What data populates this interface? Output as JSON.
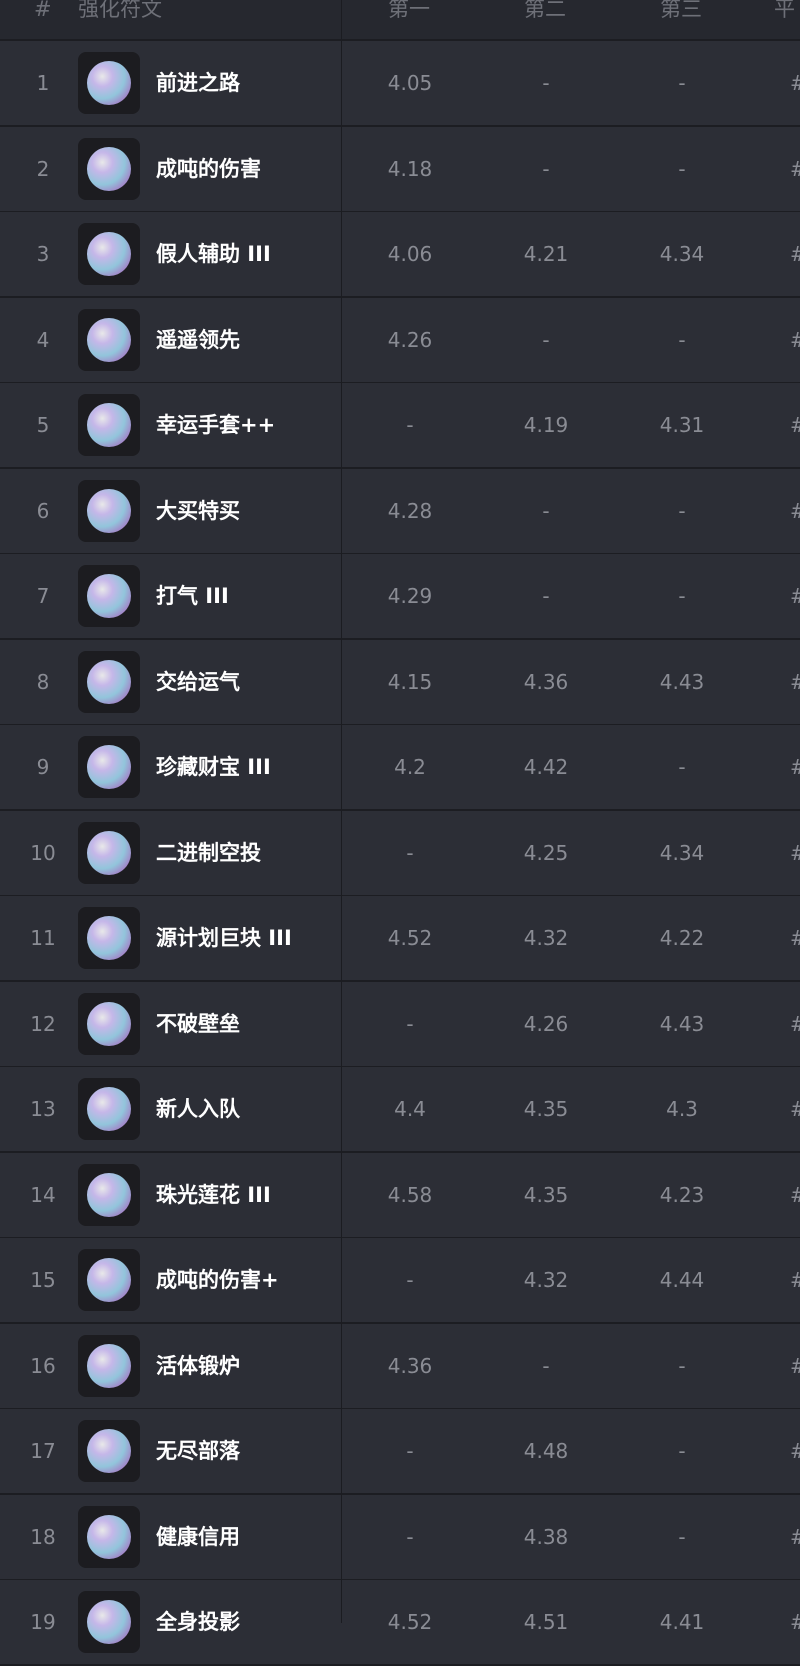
{
  "header": {
    "rank": "#",
    "rune": "强化符文",
    "first": "第一",
    "second": "第二",
    "third": "第三",
    "avg": "平"
  },
  "rows": [
    {
      "rank": "1",
      "name": "前进之路",
      "first": "4.05",
      "second": "-",
      "third": "-",
      "avg": "#"
    },
    {
      "rank": "2",
      "name": "成吨的伤害",
      "first": "4.18",
      "second": "-",
      "third": "-",
      "avg": "#"
    },
    {
      "rank": "3",
      "name": "假人辅助 III",
      "first": "4.06",
      "second": "4.21",
      "third": "4.34",
      "avg": "#"
    },
    {
      "rank": "4",
      "name": "遥遥领先",
      "first": "4.26",
      "second": "-",
      "third": "-",
      "avg": "#"
    },
    {
      "rank": "5",
      "name": "幸运手套++",
      "first": "-",
      "second": "4.19",
      "third": "4.31",
      "avg": "#"
    },
    {
      "rank": "6",
      "name": "大买特买",
      "first": "4.28",
      "second": "-",
      "third": "-",
      "avg": "#"
    },
    {
      "rank": "7",
      "name": "打气 III",
      "first": "4.29",
      "second": "-",
      "third": "-",
      "avg": "#"
    },
    {
      "rank": "8",
      "name": "交给运气",
      "first": "4.15",
      "second": "4.36",
      "third": "4.43",
      "avg": "#"
    },
    {
      "rank": "9",
      "name": "珍藏财宝 III",
      "first": "4.2",
      "second": "4.42",
      "third": "-",
      "avg": "#"
    },
    {
      "rank": "10",
      "name": "二进制空投",
      "first": "-",
      "second": "4.25",
      "third": "4.34",
      "avg": "#"
    },
    {
      "rank": "11",
      "name": "源计划巨块 III",
      "first": "4.52",
      "second": "4.32",
      "third": "4.22",
      "avg": "#"
    },
    {
      "rank": "12",
      "name": "不破壁垒",
      "first": "-",
      "second": "4.26",
      "third": "4.43",
      "avg": "#"
    },
    {
      "rank": "13",
      "name": "新人入队",
      "first": "4.4",
      "second": "4.35",
      "third": "4.3",
      "avg": "#"
    },
    {
      "rank": "14",
      "name": "珠光莲花 III",
      "first": "4.58",
      "second": "4.35",
      "third": "4.23",
      "avg": "#"
    },
    {
      "rank": "15",
      "name": "成吨的伤害+",
      "first": "-",
      "second": "4.32",
      "third": "4.44",
      "avg": "#"
    },
    {
      "rank": "16",
      "name": "活体锻炉",
      "first": "4.36",
      "second": "-",
      "third": "-",
      "avg": "#"
    },
    {
      "rank": "17",
      "name": "无尽部落",
      "first": "-",
      "second": "4.48",
      "third": "-",
      "avg": "#"
    },
    {
      "rank": "18",
      "name": "健康信用",
      "first": "-",
      "second": "4.38",
      "third": "-",
      "avg": "#"
    },
    {
      "rank": "19",
      "name": "全身投影",
      "first": "4.52",
      "second": "4.51",
      "third": "4.41",
      "avg": "#"
    }
  ]
}
